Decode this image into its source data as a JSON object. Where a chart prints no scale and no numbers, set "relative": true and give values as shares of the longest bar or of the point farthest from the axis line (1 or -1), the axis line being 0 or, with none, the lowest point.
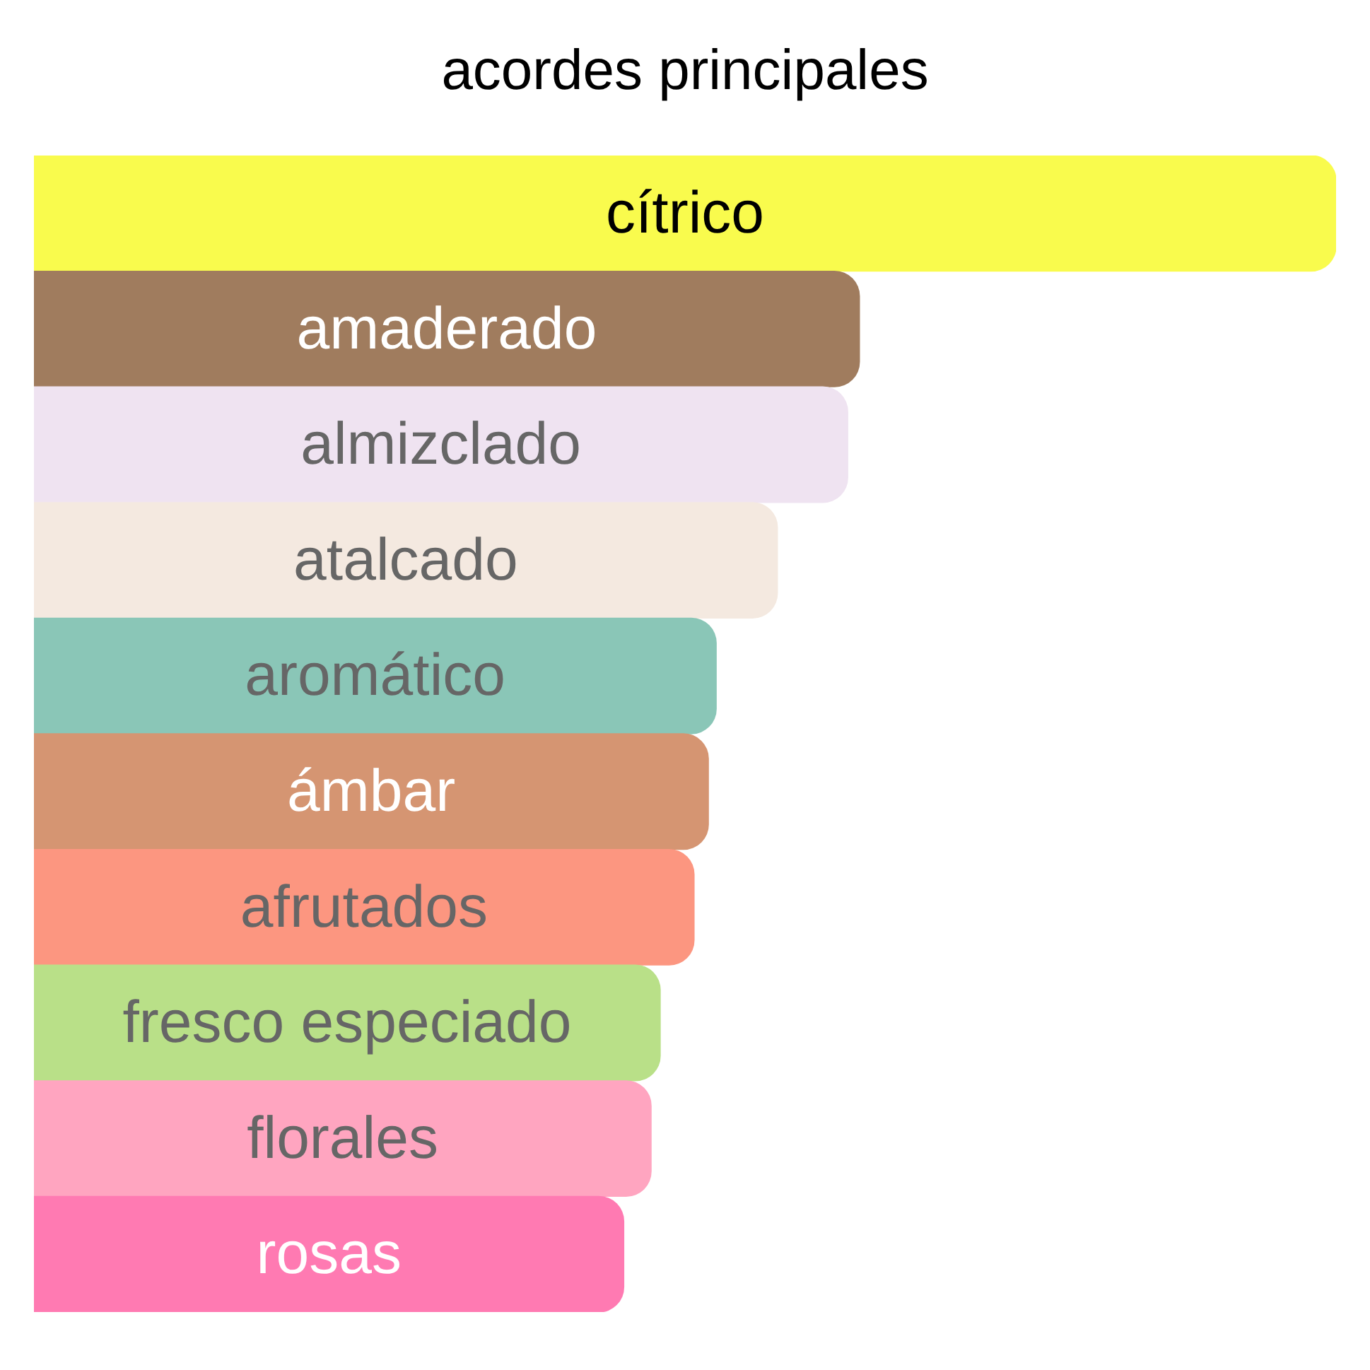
{
  "chart_data": {
    "type": "bar",
    "title": "acordes principales",
    "orientation": "horizontal",
    "relative": true,
    "categories": [
      "cítrico",
      "amaderado",
      "almizclado",
      "atalcado",
      "aromático",
      "ámbar",
      "afrutados",
      "fresco especiado",
      "florales",
      "rosas"
    ],
    "values": [
      1,
      0.634,
      0.625,
      0.571,
      0.524,
      0.518,
      0.507,
      0.481,
      0.474,
      0.453
    ],
    "colors": [
      "#f9fb4d",
      "#a07c5e",
      "#efe3f1",
      "#f4e9e0",
      "#8ac6b7",
      "#d59572",
      "#fc9680",
      "#b9e088",
      "#ffa5c0",
      "#ff7ab2"
    ],
    "legend": false
  }
}
